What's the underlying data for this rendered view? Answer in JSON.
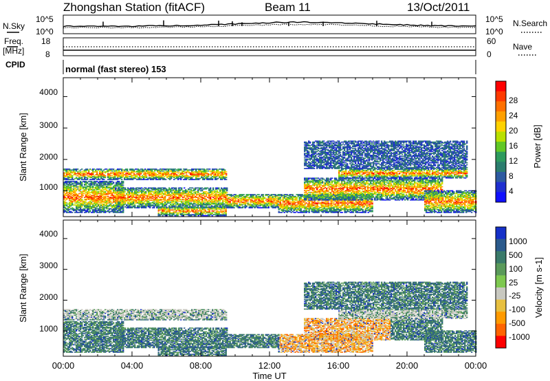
{
  "header": {
    "station": "Zhongshan Station (fitACF)",
    "beam": "Beam 11",
    "date": "13/Oct/2011"
  },
  "strip_labels": {
    "nsky": "N.Sky",
    "nsky_ticks": [
      "10^5",
      "10^0"
    ],
    "nsearch": "N.Search",
    "nsearch_ticks": [
      "10^5",
      "10^0"
    ],
    "freq_top": "Freq.",
    "freq_unit": "[MHz]",
    "freq_ticks": [
      "18",
      "8"
    ],
    "nave": "Nave",
    "nave_ticks": [
      "60",
      "0"
    ],
    "cpid": "CPID",
    "cpid_value": "normal (fast stereo) 153"
  },
  "power_panel": {
    "ylabel": "Slant Range [km]",
    "yticks": [
      "4000",
      "3000",
      "2000",
      "1000"
    ],
    "colorbar_label": "Power [dB]",
    "colorbar_ticks": [
      "28",
      "24",
      "20",
      "16",
      "12",
      "8",
      "4"
    ],
    "colorbar_colors": [
      "#ff0000",
      "#ff3a00",
      "#ff7000",
      "#ffa000",
      "#ffd200",
      "#b9e000",
      "#62c826",
      "#2e9b5e",
      "#2b7d6e",
      "#2d5aa0",
      "#1f2fd0",
      "#1010ff"
    ]
  },
  "velocity_panel": {
    "ylabel": "Slant Range [km]",
    "yticks": [
      "4000",
      "3000",
      "2000",
      "1000"
    ],
    "colorbar_label": "Velocity [m s-1]",
    "colorbar_ticks": [
      "1000",
      "500",
      "100",
      "25",
      "-25",
      "-100",
      "-500",
      "-1000"
    ],
    "colorbar_colors": [
      "#1530c8",
      "#2b5a8c",
      "#3a7a6a",
      "#5a9a5a",
      "#7ec850",
      "#c8c8c0",
      "#e8c040",
      "#ff9a00",
      "#ff6400",
      "#ff0000"
    ]
  },
  "time_axis": {
    "label": "Time UT",
    "ticks": [
      "00:00",
      "04:00",
      "08:00",
      "12:00",
      "16:00",
      "20:00",
      "00:00"
    ]
  },
  "chart_data": {
    "type": "heatmap",
    "title": "Zhongshan Station (fitACF) Beam 11 13/Oct/2011",
    "xlabel": "Time UT",
    "ylabel": "Slant Range [km]",
    "x_range_hours": [
      0,
      24
    ],
    "y_range_km": [
      180,
      4600
    ],
    "power_range_db": [
      0,
      30
    ],
    "velocity_range_ms": [
      -1000,
      1000
    ],
    "scatter_bands": [
      {
        "start_h": 0.0,
        "end_h": 3.5,
        "range_low_km": 300,
        "range_high_km": 1300
      },
      {
        "start_h": 0.0,
        "end_h": 9.5,
        "range_low_km": 1350,
        "range_high_km": 1700
      },
      {
        "start_h": 3.0,
        "end_h": 9.5,
        "range_low_km": 450,
        "range_high_km": 1100
      },
      {
        "start_h": 5.5,
        "end_h": 9.5,
        "range_low_km": 200,
        "range_high_km": 500
      },
      {
        "start_h": 9.5,
        "end_h": 12.5,
        "range_low_km": 450,
        "range_high_km": 900
      },
      {
        "start_h": 12.5,
        "end_h": 18.0,
        "range_low_km": 300,
        "range_high_km": 900
      },
      {
        "start_h": 14.0,
        "end_h": 22.0,
        "range_low_km": 700,
        "range_high_km": 1400
      },
      {
        "start_h": 16.0,
        "end_h": 23.5,
        "range_low_km": 1400,
        "range_high_km": 1700
      },
      {
        "start_h": 14.0,
        "end_h": 23.5,
        "range_low_km": 1700,
        "range_high_km": 2600
      },
      {
        "start_h": 21.0,
        "end_h": 24.0,
        "range_low_km": 300,
        "range_high_km": 1000
      }
    ]
  }
}
